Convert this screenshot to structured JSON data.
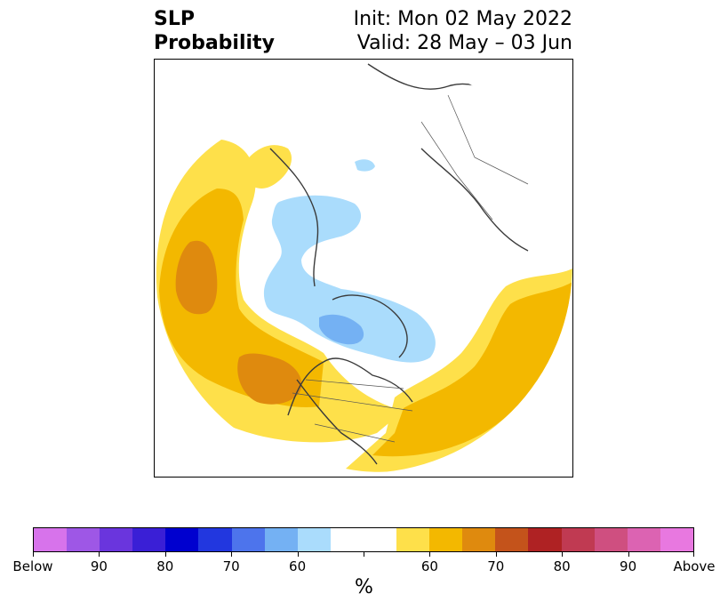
{
  "title": {
    "left_line1": "SLP",
    "left_line2": "Probability",
    "right_line1": "Init: Mon 02 May 2022",
    "right_line2": "Valid: 28 May – 03 Jun"
  },
  "map": {
    "projection": "north-polar-stereographic",
    "regions": [
      {
        "name": "north-pacific",
        "category": "above",
        "levels": [
          "50-60",
          "60-70",
          "70-80"
        ]
      },
      {
        "name": "gulf-of-alaska-west-canada",
        "category": "above",
        "levels": [
          "50-60",
          "60-70",
          "70-80"
        ]
      },
      {
        "name": "north-atlantic-eastern-us",
        "category": "above",
        "levels": [
          "50-60",
          "60-70"
        ]
      },
      {
        "name": "canadian-arctic",
        "category": "below",
        "levels": [
          "50-60",
          "60-70"
        ]
      },
      {
        "name": "siberia-arctic",
        "category": "below",
        "levels": [
          "50-60"
        ]
      }
    ]
  },
  "colorbar": {
    "colors": [
      "#d773eb",
      "#9e57e6",
      "#6a35dd",
      "#3a1fd6",
      "#0000cf",
      "#2237df",
      "#4d74ec",
      "#74b1f3",
      "#aadcfc",
      "#ffffff",
      "#ffffff",
      "#fee04a",
      "#f3b800",
      "#df8a0e",
      "#c4531b",
      "#af2223",
      "#c03a52",
      "#cf4f80",
      "#dc63b2",
      "#e878e0"
    ],
    "tick_labels": [
      "Below",
      "90",
      "80",
      "70",
      "60",
      "",
      "60",
      "70",
      "80",
      "90",
      "Above"
    ],
    "unit": "%"
  }
}
